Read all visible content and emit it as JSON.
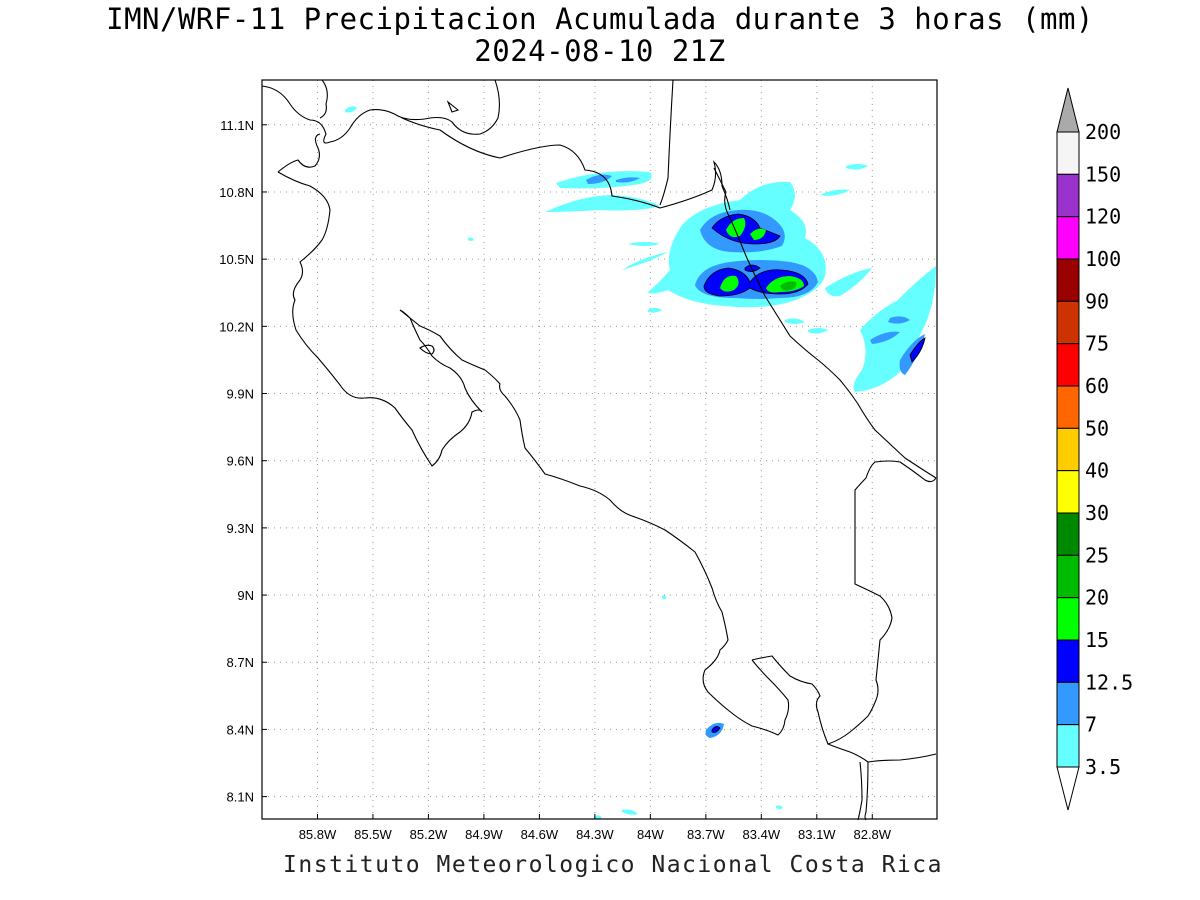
{
  "title": {
    "line1": "IMN/WRF-11 Precipitacion Acumulada durante 3 horas (mm)",
    "line2": "2024-08-10 21Z"
  },
  "footer": "Instituto Meteorologico Nacional Costa Rica",
  "map": {
    "lon_range": [
      -86.1,
      -82.45
    ],
    "lat_range": [
      8.0,
      11.3
    ],
    "lon_ticks": [
      "85.8W",
      "85.5W",
      "85.2W",
      "84.9W",
      "84.6W",
      "84.3W",
      "84W",
      "83.7W",
      "83.4W",
      "83.1W",
      "82.8W"
    ],
    "lat_ticks": [
      "11.1N",
      "10.8N",
      "10.5N",
      "10.2N",
      "9.9N",
      "9.6N",
      "9.3N",
      "9N",
      "8.7N",
      "8.4N",
      "8.1N"
    ],
    "grid": "dotted"
  },
  "colorbar": {
    "labels": [
      "200",
      "150",
      "120",
      "100",
      "90",
      "75",
      "60",
      "50",
      "40",
      "30",
      "25",
      "20",
      "15",
      "12.5",
      "7",
      "3.5"
    ],
    "colors": [
      "#f5f5f5",
      "#9933cc",
      "#ff00ff",
      "#990000",
      "#cc3300",
      "#ff0000",
      "#ff6600",
      "#ffcc00",
      "#ffff00",
      "#008800",
      "#00bb00",
      "#00ff00",
      "#0000ff",
      "#3399ff",
      "#66ffff"
    ],
    "over_color": "#aaaaaa",
    "under_color": "#ffffff"
  },
  "precip_colors": {
    "c35": "#66ffff",
    "c7": "#3399ff",
    "c125": "#0000ff",
    "c15": "#00ff00",
    "c20": "#00bb00"
  }
}
